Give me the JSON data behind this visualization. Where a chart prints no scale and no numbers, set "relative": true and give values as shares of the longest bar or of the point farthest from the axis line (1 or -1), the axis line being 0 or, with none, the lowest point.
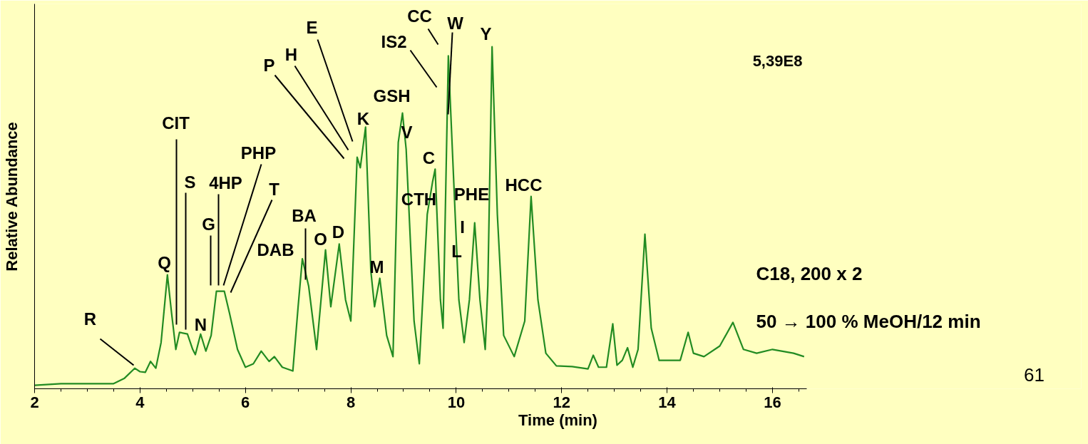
{
  "chart_data": {
    "type": "line",
    "relative": true,
    "xlabel": "Time (min)",
    "ylabel": "Relative Abundance",
    "xlim": [
      2,
      16.65
    ],
    "xticks": [
      2,
      4,
      6,
      8,
      10,
      12,
      14,
      16
    ],
    "grid": false,
    "marker": "none",
    "line_style": "solid",
    "x": [
      2.0,
      2.5,
      3.5,
      3.7,
      3.9,
      4.0,
      4.1,
      4.2,
      4.3,
      4.4,
      4.52,
      4.6,
      4.68,
      4.75,
      4.9,
      5.0,
      5.05,
      5.15,
      5.25,
      5.35,
      5.45,
      5.6,
      5.7,
      5.85,
      6.0,
      6.15,
      6.3,
      6.45,
      6.55,
      6.7,
      6.9,
      7.0,
      7.08,
      7.2,
      7.35,
      7.52,
      7.62,
      7.78,
      7.9,
      8.0,
      8.12,
      8.18,
      8.28,
      8.38,
      8.45,
      8.55,
      8.68,
      8.8,
      8.9,
      8.98,
      9.05,
      9.2,
      9.3,
      9.45,
      9.55,
      9.6,
      9.7,
      9.75,
      9.85,
      9.95,
      10.05,
      10.15,
      10.25,
      10.35,
      10.45,
      10.55,
      10.6,
      10.68,
      10.78,
      10.9,
      11.1,
      11.3,
      11.42,
      11.55,
      11.7,
      11.9,
      12.2,
      12.5,
      12.6,
      12.7,
      12.85,
      12.97,
      13.05,
      13.15,
      13.25,
      13.35,
      13.45,
      13.58,
      13.7,
      13.85,
      14.1,
      14.25,
      14.4,
      14.5,
      14.7,
      15.0,
      15.25,
      15.45,
      15.7,
      16.0,
      16.4,
      16.6
    ],
    "series": [
      {
        "color": "#228b22",
        "values": [
          0.01,
          0.015,
          0.015,
          0.03,
          0.06,
          0.05,
          0.048,
          0.08,
          0.06,
          0.135,
          0.333,
          0.22,
          0.115,
          0.165,
          0.16,
          0.115,
          0.1,
          0.16,
          0.11,
          0.156,
          0.285,
          0.285,
          0.22,
          0.115,
          0.063,
          0.073,
          0.11,
          0.08,
          0.094,
          0.063,
          0.052,
          0.24,
          0.38,
          0.3,
          0.115,
          0.406,
          0.24,
          0.423,
          0.26,
          0.198,
          0.677,
          0.646,
          0.765,
          0.344,
          0.24,
          0.323,
          0.156,
          0.094,
          0.72,
          0.806,
          0.7,
          0.198,
          0.073,
          0.51,
          0.604,
          0.642,
          0.26,
          0.177,
          0.973,
          0.615,
          0.26,
          0.135,
          0.26,
          0.485,
          0.26,
          0.115,
          0.302,
          1.0,
          0.51,
          0.156,
          0.094,
          0.198,
          0.5625,
          0.26,
          0.104,
          0.067,
          0.065,
          0.058,
          0.098,
          0.063,
          0.063,
          0.19,
          0.069,
          0.083,
          0.12,
          0.063,
          0.115,
          0.452,
          0.177,
          0.083,
          0.083,
          0.083,
          0.165,
          0.104,
          0.094,
          0.125,
          0.194,
          0.115,
          0.104,
          0.115,
          0.104,
          0.094
        ]
      }
    ],
    "annotations": [
      "R",
      "Q",
      "CIT",
      "S",
      "N",
      "G",
      "4HP",
      "PHP",
      "T",
      "DAB",
      "BA",
      "O",
      "D",
      "P",
      "H",
      "E",
      "K",
      "GSH",
      "V",
      "M",
      "IS2",
      "CC",
      "W",
      "Y",
      "C",
      "CTH",
      "PHE",
      "I",
      "L",
      "HCC",
      "5,39E8",
      "C18, 200 x 2",
      "50 → 100 % MeOH/12 min",
      "61"
    ]
  }
}
